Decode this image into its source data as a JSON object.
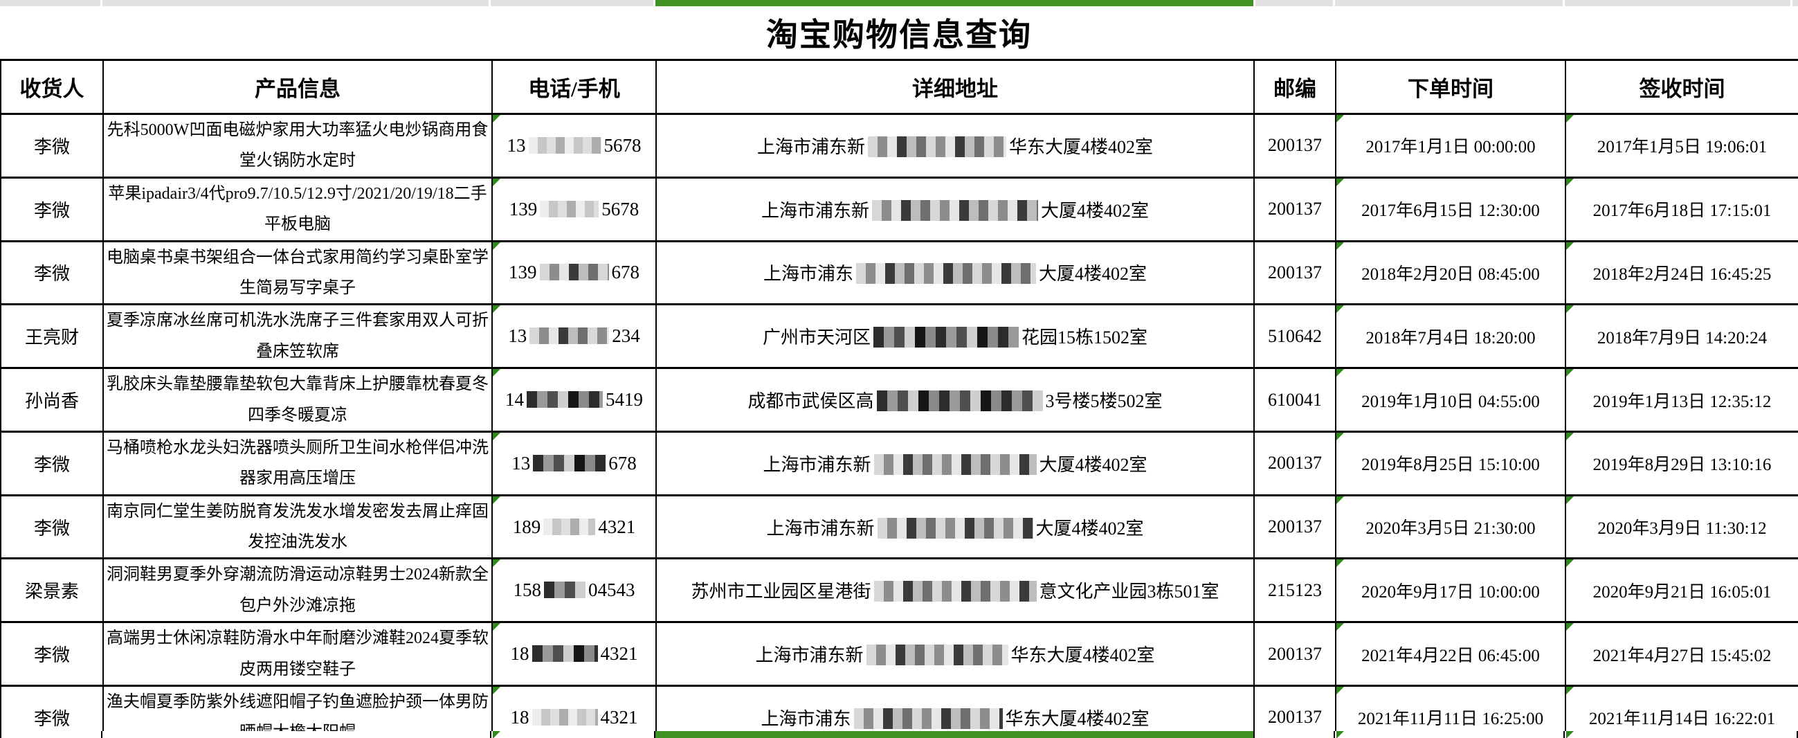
{
  "page": {
    "title": "淘宝购物信息查询"
  },
  "colors": {
    "accent_green": "#3f9220",
    "triangle_green": "#2e8a1b",
    "strip_gray": "#e2e2e2",
    "grid_line": "#000000",
    "background": "#ffffff"
  },
  "table": {
    "columns": [
      {
        "key": "recipient",
        "label": "收货人"
      },
      {
        "key": "product",
        "label": "产品信息"
      },
      {
        "key": "phone",
        "label": "电话/手机"
      },
      {
        "key": "address",
        "label": "详细地址"
      },
      {
        "key": "zip",
        "label": "邮编"
      },
      {
        "key": "order_time",
        "label": "下单时间"
      },
      {
        "key": "sign_time",
        "label": "签收时间"
      }
    ],
    "rows": [
      {
        "recipient": "李微",
        "product": "先科5000W凹面电磁炉家用大功率猛火电炒锅商用食堂火锅防水定时",
        "phone": {
          "pre": "13",
          "suf": "5678",
          "mask_w": 105,
          "shade": "light"
        },
        "address": {
          "pre": "上海市浦东新",
          "suf": "华东大厦4楼402室",
          "mask_w": 200,
          "shade": "mix"
        },
        "zip": "200137",
        "order_time": "2017年1月1日 00:00:00",
        "sign_time": "2017年1月5日 19:06:01"
      },
      {
        "recipient": "李微",
        "product": "苹果ipadair3/4代pro9.7/10.5/12.9寸/2021/20/19/18二手平板电脑",
        "phone": {
          "pre": "139",
          "suf": "5678",
          "mask_w": 85,
          "shade": "light"
        },
        "address": {
          "pre": "上海市浦东新",
          "suf": "大厦4楼402室",
          "mask_w": 240,
          "shade": "mix"
        },
        "zip": "200137",
        "order_time": "2017年6月15日 12:30:00",
        "sign_time": "2017年6月18日 17:15:01"
      },
      {
        "recipient": "李微",
        "product": "电脑桌书桌书架组合一体台式家用简约学习桌卧室学生简易写字桌子",
        "phone": {
          "pre": "139",
          "suf": "678",
          "mask_w": 100,
          "shade": "mix"
        },
        "address": {
          "pre": "上海市浦东",
          "suf": "大厦4楼402室",
          "mask_w": 260,
          "shade": "mix"
        },
        "zip": "200137",
        "order_time": "2018年2月20日 08:45:00",
        "sign_time": "2018年2月24日 16:45:25"
      },
      {
        "recipient": "王亮财",
        "product": "夏季凉席冰丝席可机洗水洗席子三件套家用双人可折叠床笠软席",
        "phone": {
          "pre": "13",
          "suf": "234",
          "mask_w": 115,
          "shade": "mix"
        },
        "address": {
          "pre": "广州市天河区",
          "suf": "花园15栋1502室",
          "mask_w": 210,
          "shade": "dark"
        },
        "zip": "510642",
        "order_time": "2018年7月4日 18:20:00",
        "sign_time": "2018年7月9日 14:20:24"
      },
      {
        "recipient": "孙尚香",
        "product": "乳胶床头靠垫腰靠垫软包大靠背床上护腰靠枕春夏冬四季冬暖夏凉",
        "phone": {
          "pre": "14",
          "suf": "5419",
          "mask_w": 110,
          "shade": "dark"
        },
        "address": {
          "pre": "成都市武侯区高",
          "suf": "3号楼5楼502室",
          "mask_w": 240,
          "shade": "dark"
        },
        "zip": "610041",
        "order_time": "2019年1月10日 04:55:00",
        "sign_time": "2019年1月13日 12:35:12"
      },
      {
        "recipient": "李微",
        "product": "马桶喷枪水龙头妇洗器喷头厕所卫生间水枪伴侣冲洗器家用高压增压",
        "phone": {
          "pre": "13",
          "suf": "678",
          "mask_w": 105,
          "shade": "dark"
        },
        "address": {
          "pre": "上海市浦东新",
          "suf": "大厦4楼402室",
          "mask_w": 235,
          "shade": "mix"
        },
        "zip": "200137",
        "order_time": "2019年8月25日 15:10:00",
        "sign_time": "2019年8月29日 13:10:16"
      },
      {
        "recipient": "李微",
        "product": "南京同仁堂生姜防脱育发洗发水增发密发去屑止痒固发控油洗发水",
        "phone": {
          "pre": "189",
          "suf": "4321",
          "mask_w": 75,
          "shade": "light"
        },
        "address": {
          "pre": "上海市浦东新",
          "suf": "大厦4楼402室",
          "mask_w": 225,
          "shade": "mix"
        },
        "zip": "200137",
        "order_time": "2020年3月5日 21:30:00",
        "sign_time": "2020年3月9日 11:30:12"
      },
      {
        "recipient": "梁景素",
        "product": "洞洞鞋男夏季外穿潮流防滑运动凉鞋男士2024新款全包户外沙滩凉拖",
        "phone": {
          "pre": "158",
          "suf": "04543",
          "mask_w": 60,
          "shade": "dark"
        },
        "address": {
          "pre": "苏州市工业园区星港街",
          "suf": "意文化产业园3栋501室",
          "mask_w": 235,
          "shade": "mix"
        },
        "zip": "215123",
        "order_time": "2020年9月17日 10:00:00",
        "sign_time": "2020年9月21日 16:05:01"
      },
      {
        "recipient": "李微",
        "product": "高端男士休闲凉鞋防滑水中年耐磨沙滩鞋2024夏季软皮两用镂空鞋子",
        "phone": {
          "pre": "18",
          "suf": "4321",
          "mask_w": 95,
          "shade": "dark"
        },
        "address": {
          "pre": "上海市浦东新",
          "suf": "华东大厦4楼402室",
          "mask_w": 205,
          "shade": "mix"
        },
        "zip": "200137",
        "order_time": "2021年4月22日 06:45:00",
        "sign_time": "2021年4月27日 15:45:02"
      },
      {
        "recipient": "李微",
        "product": "渔夫帽夏季防紫外线遮阳帽子钓鱼遮脸护颈一体男防晒帽大檐太阳帽",
        "phone": {
          "pre": "18",
          "suf": "4321",
          "mask_w": 95,
          "shade": "light"
        },
        "address": {
          "pre": "上海市浦东",
          "suf": "华东大厦4楼402室",
          "mask_w": 215,
          "shade": "mix"
        },
        "zip": "200137",
        "order_time": "2021年11月11日 16:25:00",
        "sign_time": "2021年11月14日 16:22:01"
      }
    ]
  }
}
